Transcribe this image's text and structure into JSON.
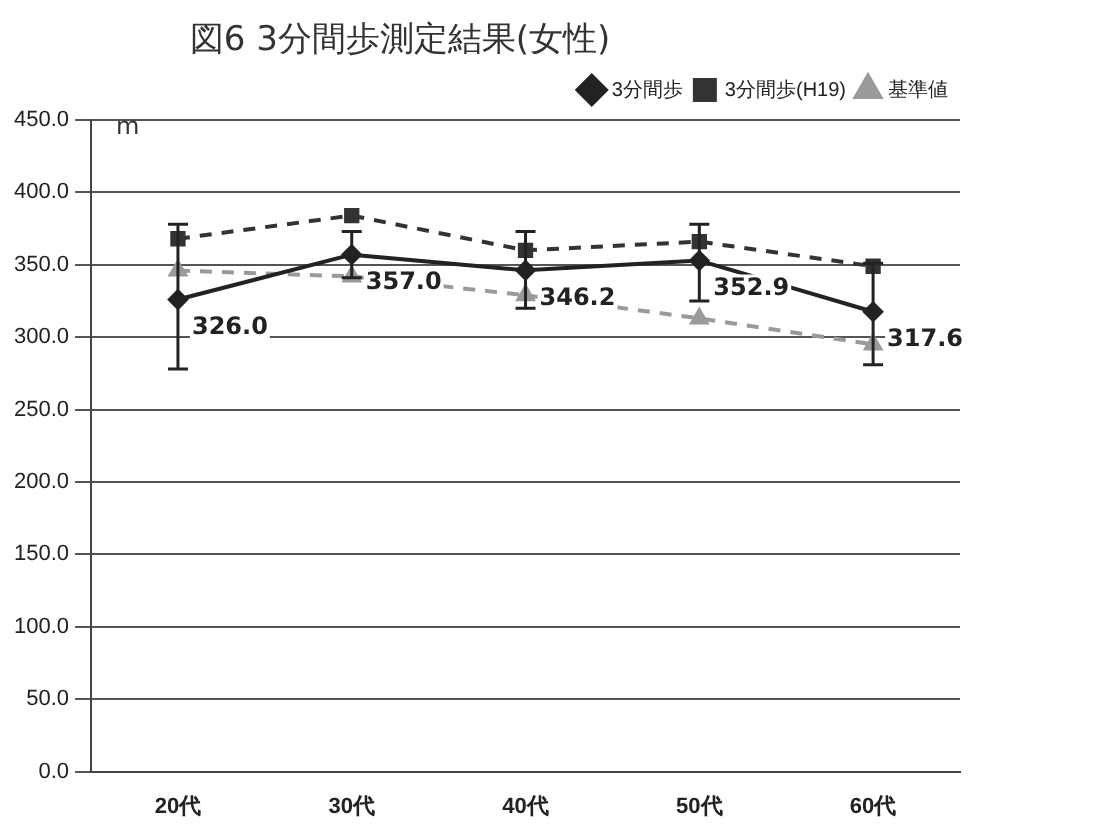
{
  "chart_data": {
    "type": "line",
    "title": "図6 3分間歩測定結果(女性)",
    "ylabel": "m",
    "categories": [
      "20代",
      "30代",
      "40代",
      "50代",
      "60代"
    ],
    "series": [
      {
        "name": "3分間歩",
        "color": "#222222",
        "marker": "diamond",
        "line_style": "solid",
        "values": [
          326.0,
          357.0,
          346.2,
          352.9,
          317.6
        ],
        "value_labels": [
          "326.0",
          "357.0",
          "346.2",
          "352.9",
          "317.6"
        ],
        "errors": [
          [
            278,
            378
          ],
          [
            341,
            373
          ],
          [
            320,
            373
          ],
          [
            325,
            378
          ],
          [
            281,
            351
          ]
        ]
      },
      {
        "name": "3分間歩(H19)",
        "color": "#333333",
        "marker": "square",
        "line_style": "dashed",
        "values": [
          368,
          384,
          360,
          366,
          349
        ]
      },
      {
        "name": "基準値",
        "color": "#9a9a9a",
        "marker": "triangle",
        "line_style": "dashed",
        "values": [
          346,
          342,
          329,
          313,
          295
        ]
      }
    ],
    "ylim": [
      0,
      450
    ],
    "yticks": [
      {
        "value": 0,
        "label": "0.0"
      },
      {
        "value": 50,
        "label": "50.0"
      },
      {
        "value": 100,
        "label": "100.0"
      },
      {
        "value": 150,
        "label": "150.0"
      },
      {
        "value": 200,
        "label": "200.0"
      },
      {
        "value": 250,
        "label": "250.0"
      },
      {
        "value": 300,
        "label": "300.0"
      },
      {
        "value": 350,
        "label": "350.0"
      },
      {
        "value": 400,
        "label": "400.0"
      },
      {
        "value": 450,
        "label": "450.0"
      }
    ],
    "grid": "y",
    "legend": "top right"
  }
}
